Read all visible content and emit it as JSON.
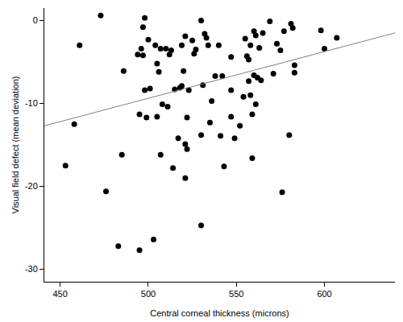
{
  "chart_data": {
    "type": "scatter",
    "x_label": "Central corneal thickness (microns)",
    "y_label": "Visual field defect (mean deviation)",
    "xlim": [
      441,
      640
    ],
    "ylim": [
      -31.5,
      1.5
    ],
    "xticks": [
      450,
      500,
      550,
      600
    ],
    "yticks": [
      -30,
      -20,
      -10,
      0
    ],
    "grid": false,
    "series": [
      {
        "type": "scatter",
        "color": "#000000",
        "marker": "circle",
        "x": [
          453,
          458,
          461,
          473,
          476,
          483,
          485,
          486,
          494,
          495,
          495,
          496,
          497,
          497,
          498,
          498,
          499,
          500,
          501,
          503,
          504,
          505,
          505,
          506,
          507,
          507,
          508,
          510,
          511,
          512,
          513,
          514,
          515,
          517,
          518,
          519,
          519,
          520,
          521,
          521,
          521,
          522,
          522,
          523,
          525,
          526,
          527,
          530,
          530,
          530,
          531,
          532,
          533,
          534,
          535,
          536,
          538,
          540,
          541,
          542,
          543,
          547,
          547,
          547,
          549,
          552,
          554,
          555,
          556,
          557,
          557,
          558,
          558,
          559,
          559,
          560,
          560,
          561,
          561,
          562,
          563,
          564,
          565,
          569,
          571,
          573,
          575,
          576,
          577,
          580,
          581,
          582,
          583,
          583,
          598,
          600,
          607
        ],
        "values": [
          -17.5,
          -12.5,
          -3,
          0.6,
          -20.6,
          -27.2,
          -16.2,
          -6.1,
          -4.1,
          -27.7,
          -11.3,
          -3.4,
          -4.2,
          -0.8,
          0.3,
          -8.4,
          -11.7,
          -2.3,
          -8.2,
          -26.4,
          -3,
          -11.6,
          -5.2,
          -6.2,
          -16.2,
          -3.4,
          -10.1,
          -3.4,
          -10.4,
          -4.1,
          -3.6,
          -17.8,
          -8.3,
          -14.2,
          -8.1,
          -3,
          -7.9,
          -6.1,
          -1.9,
          -19,
          -14.9,
          -15.5,
          -11.7,
          -8.4,
          -2.4,
          -4,
          -3.5,
          0,
          -24.7,
          -13.8,
          -7.8,
          -1.6,
          -2.1,
          -3,
          -12.3,
          -9.7,
          -6.7,
          -3,
          -13.9,
          -6.7,
          -17.6,
          -4.4,
          -8.4,
          -11.6,
          -14.2,
          -12.7,
          -9.2,
          -2.2,
          -4.3,
          -4.7,
          -7.3,
          -9,
          -3,
          -16.6,
          -11.3,
          -6.6,
          -1.3,
          -1.8,
          -10.1,
          -6.9,
          -3.3,
          -7.2,
          -1.5,
          -0.1,
          -6.4,
          -2.8,
          -3.6,
          -20.7,
          -1.3,
          -13.8,
          -0.4,
          -0.9,
          -5.4,
          -6.3,
          -1.2,
          -3.4,
          -2.1
        ]
      },
      {
        "type": "line",
        "color": "#808080",
        "line_style": "solid",
        "x": [
          441,
          640
        ],
        "values": [
          -12.7,
          -1.5
        ]
      }
    ]
  }
}
